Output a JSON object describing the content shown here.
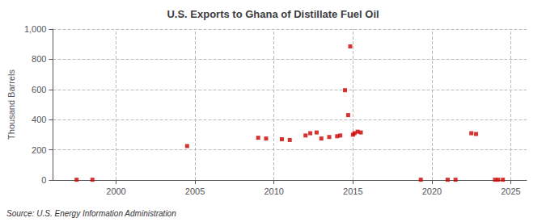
{
  "chart_data": {
    "type": "scatter",
    "title": "U.S. Exports to Ghana of Distillate Fuel Oil",
    "ylabel": "Thousand Barrels",
    "annotation": "Source: U.S. Energy Information Administration",
    "x": [
      1997.5,
      1998.5,
      2004.5,
      2009.0,
      2009.5,
      2010.5,
      2011.0,
      2012.0,
      2012.3,
      2012.7,
      2013.0,
      2013.5,
      2014.0,
      2014.2,
      2014.5,
      2014.7,
      2014.83,
      2015.0,
      2015.1,
      2015.3,
      2015.5,
      2019.3,
      2021.0,
      2021.5,
      2022.5,
      2022.8,
      2024.0,
      2024.2,
      2024.5
    ],
    "values": [
      2,
      2,
      225,
      280,
      275,
      270,
      265,
      295,
      310,
      315,
      275,
      285,
      290,
      295,
      595,
      430,
      885,
      300,
      310,
      320,
      315,
      2,
      2,
      2,
      310,
      305,
      2,
      2,
      2
    ],
    "color": "#cc0000",
    "marker": "square",
    "xlim": [
      1996,
      2026
    ],
    "xticks": [
      2000,
      2005,
      2010,
      2015,
      2020,
      2025
    ],
    "ylim": [
      0,
      1000
    ],
    "yticks": [
      0,
      200,
      400,
      600,
      800,
      {
        "value": 1000,
        "label": "1,000"
      }
    ],
    "grid": true
  }
}
